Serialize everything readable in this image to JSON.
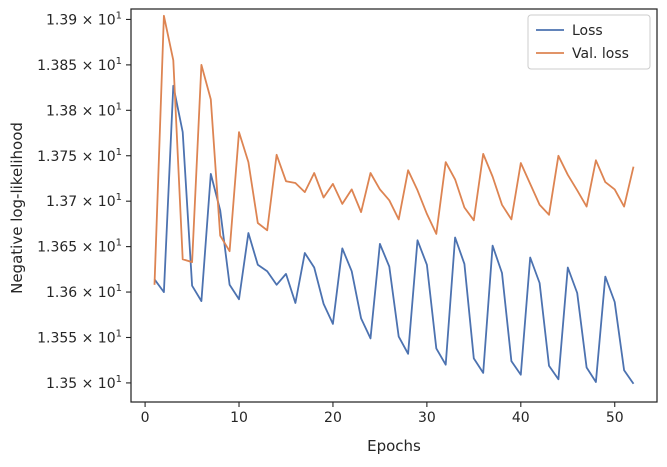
{
  "chart_data": {
    "type": "line",
    "xlabel": "Epochs",
    "ylabel": "Negative log-likelihood",
    "xlim": [
      -1.5,
      54.5
    ],
    "ylim": [
      13.479,
      13.9115
    ],
    "x_ticks": [
      0,
      10,
      20,
      30,
      40,
      50
    ],
    "x_tick_labels": [
      "0",
      "10",
      "20",
      "30",
      "40",
      "50"
    ],
    "y_ticks": [
      13.5,
      13.55,
      13.6,
      13.65,
      13.7,
      13.75,
      13.8,
      13.85,
      13.9
    ],
    "y_tick_labels": [
      [
        "1.35",
        "1"
      ],
      [
        "1.355",
        "1"
      ],
      [
        "1.36",
        "1"
      ],
      [
        "1.365",
        "1"
      ],
      [
        "1.37",
        "1"
      ],
      [
        "1.375",
        "1"
      ],
      [
        "1.38",
        "1"
      ],
      [
        "1.385",
        "1"
      ],
      [
        "1.39",
        "1"
      ]
    ],
    "y_scale": "log",
    "grid": false,
    "legend_position": "top-right",
    "x": [
      1,
      2,
      3,
      4,
      5,
      6,
      7,
      8,
      9,
      10,
      11,
      12,
      13,
      14,
      15,
      16,
      17,
      18,
      19,
      20,
      21,
      22,
      23,
      24,
      25,
      26,
      27,
      28,
      29,
      30,
      31,
      32,
      33,
      34,
      35,
      36,
      37,
      38,
      39,
      40,
      41,
      42,
      43,
      44,
      45,
      46,
      47,
      48,
      49,
      50,
      51,
      52
    ],
    "series": [
      {
        "name": "Loss",
        "color": "#4c72b0",
        "values": [
          13.614,
          13.6,
          13.827,
          13.776,
          13.607,
          13.59,
          13.73,
          13.69,
          13.608,
          13.592,
          13.665,
          13.63,
          13.623,
          13.608,
          13.62,
          13.588,
          13.643,
          13.627,
          13.587,
          13.565,
          13.648,
          13.623,
          13.571,
          13.549,
          13.653,
          13.628,
          13.551,
          13.532,
          13.657,
          13.63,
          13.538,
          13.52,
          13.66,
          13.631,
          13.527,
          13.511,
          13.651,
          13.621,
          13.524,
          13.509,
          13.638,
          13.61,
          13.519,
          13.504,
          13.627,
          13.599,
          13.517,
          13.501,
          13.617,
          13.589,
          13.514,
          13.499
        ]
      },
      {
        "name": "Val. loss",
        "color": "#dd8452",
        "values": [
          13.608,
          13.904,
          13.855,
          13.636,
          13.633,
          13.85,
          13.812,
          13.662,
          13.645,
          13.776,
          13.743,
          13.676,
          13.668,
          13.751,
          13.722,
          13.72,
          13.71,
          13.731,
          13.704,
          13.719,
          13.697,
          13.713,
          13.688,
          13.731,
          13.713,
          13.701,
          13.68,
          13.734,
          13.712,
          13.686,
          13.664,
          13.743,
          13.724,
          13.693,
          13.679,
          13.752,
          13.727,
          13.696,
          13.68,
          13.742,
          13.719,
          13.696,
          13.685,
          13.75,
          13.729,
          13.712,
          13.694,
          13.745,
          13.721,
          13.713,
          13.694,
          13.738
        ]
      }
    ]
  }
}
